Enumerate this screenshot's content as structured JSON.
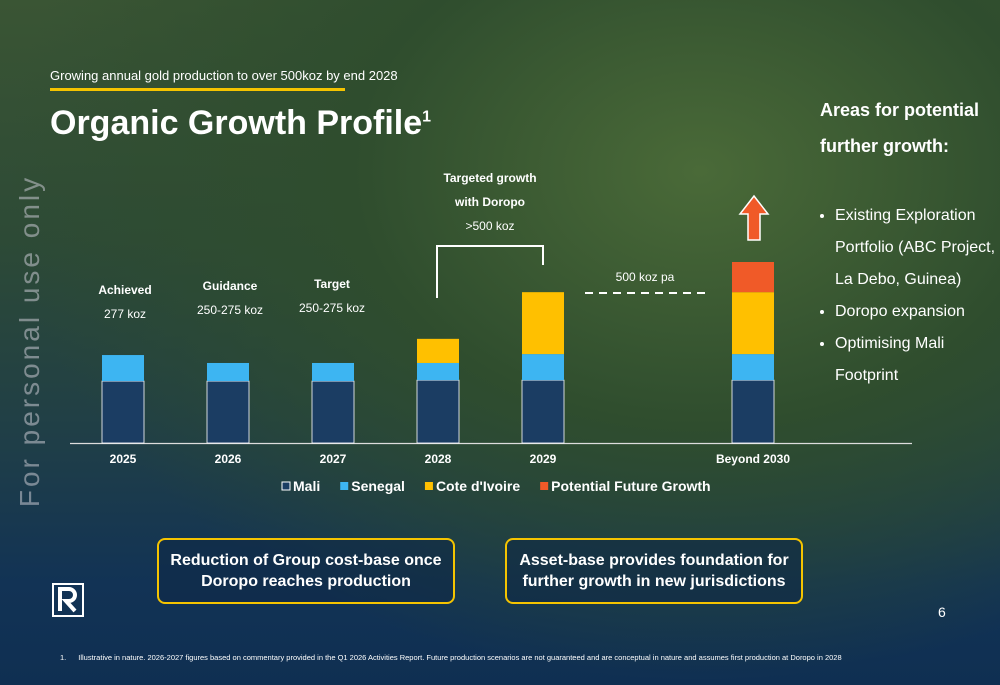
{
  "header": {
    "subtitle": "Growing annual gold production to over 500koz by end 2028",
    "title": "Organic Growth Profile",
    "title_sup": "1"
  },
  "watermark": "For personal use only",
  "chart_data": {
    "type": "stacked-bar",
    "categories": [
      "2025",
      "2026",
      "2027",
      "2028",
      "2029",
      null,
      "Beyond 2030"
    ],
    "series": [
      {
        "name": "Mali",
        "color": "#1b3d63",
        "values": [
          195,
          195,
          195,
          198,
          198,
          null,
          198
        ]
      },
      {
        "name": "Senegal",
        "color": "#3db5f2",
        "values": [
          82,
          57,
          57,
          54,
          82,
          null,
          82
        ]
      },
      {
        "name": "Cote d'Ivoire",
        "color": "#ffc000",
        "values": [
          null,
          null,
          null,
          76,
          195,
          null,
          195
        ]
      },
      {
        "name": "Potential Future Growth",
        "color": "#f05a28",
        "values": [
          null,
          null,
          null,
          null,
          null,
          null,
          95
        ]
      }
    ],
    "annotations": {
      "achieved": [
        "Achieved",
        "277 koz"
      ],
      "guidance": [
        "Guidance",
        "250-275 koz"
      ],
      "target": [
        "Target",
        "250-275 koz"
      ],
      "doropo": [
        "Targeted growth with Doropo",
        ">500 koz"
      ],
      "pa": "500 koz pa"
    }
  },
  "sidebar": {
    "heading": "Areas for potential further growth:",
    "bullets": [
      "Existing Exploration Portfolio (ABC Project, La Debo, Guinea)",
      "Doropo expansion",
      "Optimising Mali Footprint"
    ]
  },
  "boxes": [
    "Reduction of Group cost-base once Doropo reaches production",
    "Asset-base provides foundation for further growth in new jurisdictions"
  ],
  "page_number": "6",
  "footnote": {
    "number": "1.",
    "text": "Illustrative in nature. 2026-2027 figures based on commentary provided in the Q1 2026 Activities Report. Future production scenarios are not guaranteed and are conceptual in nature and assumes first production at Doropo in 2028"
  }
}
